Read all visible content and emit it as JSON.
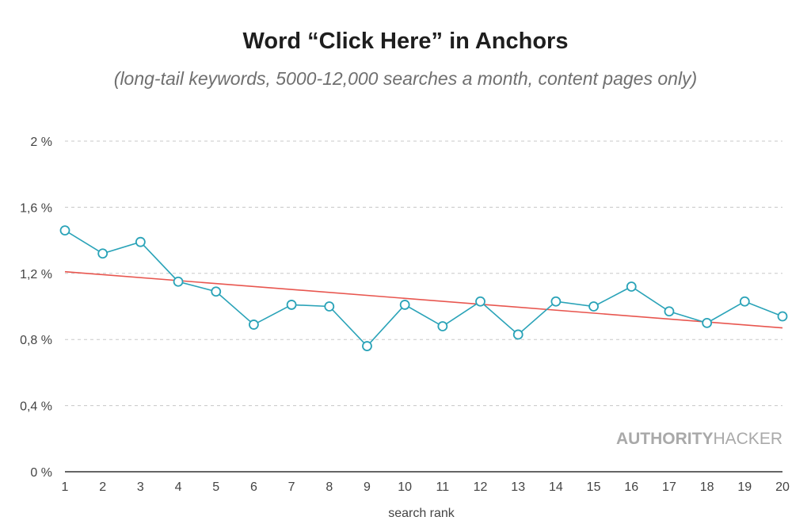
{
  "chart_data": {
    "type": "line",
    "title": "Word “Click Here” in Anchors",
    "subtitle": "(long-tail keywords, 5000-12,000 searches a month, content pages only)",
    "xlabel": "search rank",
    "ylabel": "",
    "x": [
      1,
      2,
      3,
      4,
      5,
      6,
      7,
      8,
      9,
      10,
      11,
      12,
      13,
      14,
      15,
      16,
      17,
      18,
      19,
      20
    ],
    "series": [
      {
        "values": [
          1.46,
          1.32,
          1.39,
          1.15,
          1.09,
          0.89,
          1.01,
          1.0,
          0.76,
          1.01,
          0.88,
          1.03,
          0.83,
          1.03,
          1.0,
          1.12,
          0.97,
          0.9,
          1.03,
          0.94
        ]
      }
    ],
    "trendline": {
      "start": 1.21,
      "end": 0.87
    },
    "ylim": [
      0,
      2
    ],
    "yticks": [
      0,
      0.4,
      0.8,
      1.2,
      1.6,
      2
    ],
    "ytick_labels": [
      "0 %",
      "0,4 %",
      "0,8 %",
      "1,2 %",
      "1,6 %",
      "2 %"
    ],
    "grid": true,
    "watermark": {
      "bold": "AUTHORITY",
      "regular": "HACKER"
    },
    "colors": {
      "line": "#2aa3b8",
      "trend": "#e8564f",
      "grid": "#c8c8c8",
      "axis": "#333333"
    }
  }
}
